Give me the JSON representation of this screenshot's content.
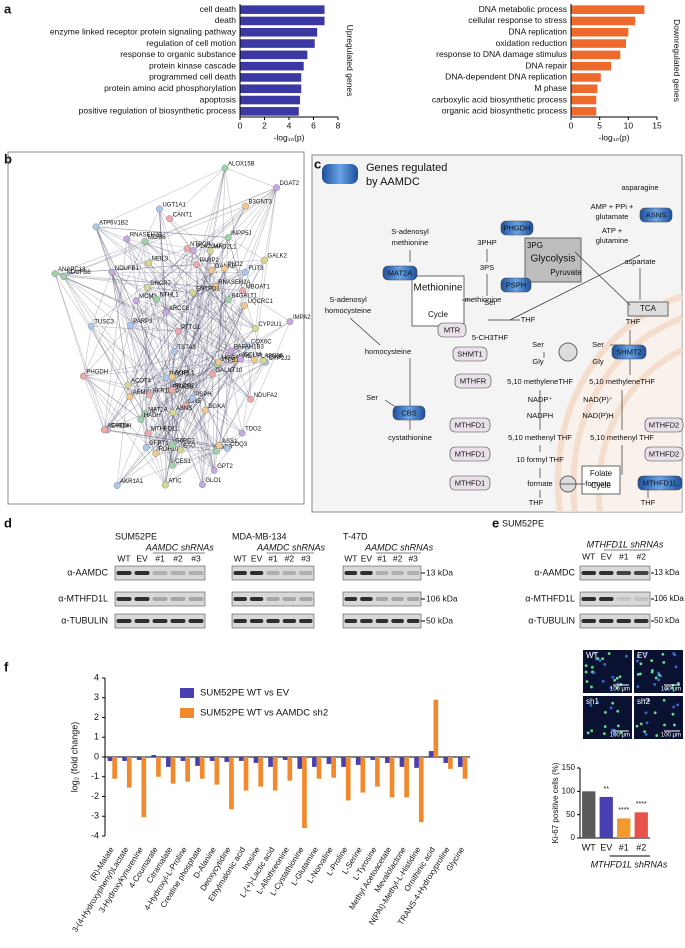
{
  "panel_labels": [
    "a",
    "b",
    "c",
    "d",
    "e",
    "f"
  ],
  "chart_data": [
    {
      "type": "hbar",
      "categories": [
        "cell death",
        "death",
        "enzyme linked receptor protein signaling pathway",
        "regulation of cell motion",
        "response to organic substance",
        "protein kinase cascade",
        "programmed cell death",
        "protein amino acid phosphorylation",
        "apoptosis",
        "positive regulation of biosynthetic process"
      ],
      "values": [
        6.9,
        6.9,
        6.3,
        6.1,
        5.5,
        5.2,
        5.0,
        5.0,
        4.9,
        4.8
      ],
      "color": "#3b37a3",
      "xlim": [
        0,
        8
      ],
      "xticks": [
        0,
        2,
        4,
        6,
        8
      ],
      "xlabel": "-log₁₀(p)",
      "ylabel": "Upregulated genes"
    },
    {
      "type": "hbar",
      "categories": [
        "DNA metabolic process",
        "cellular response to stress",
        "DNA replication",
        "oxidation reduction",
        "response to DNA damage stimulus",
        "DNA repair",
        "DNA-dependent DNA replication",
        "M phase",
        "carboxylic acid biosynthetic process",
        "organic acid biosynthetic process"
      ],
      "values": [
        12.8,
        11.2,
        10.0,
        9.6,
        8.6,
        7.0,
        5.2,
        4.6,
        4.4,
        4.4
      ],
      "color": "#ee6a2c",
      "xlim": [
        0,
        15
      ],
      "xticks": [
        0,
        5,
        10,
        15
      ],
      "xlabel": "-log₁₀(p)",
      "ylabel": "Downregulated genes"
    },
    {
      "type": "bar",
      "categories": [
        "WT",
        "EV",
        "#1",
        "#2"
      ],
      "values": [
        100,
        88,
        42,
        55
      ],
      "colors": [
        "#5a5a5a",
        "#4a3fb0",
        "#f39a2e",
        "#e9524a"
      ],
      "annotations": [
        null,
        "**",
        "****",
        "****"
      ],
      "ylim": [
        0,
        150
      ],
      "yticks": [
        0,
        50,
        100,
        150
      ],
      "ylabel": "Ki-67 positive cells (%)",
      "xlabel": "MTHFD1L shRNAs"
    },
    {
      "type": "grouped_bar",
      "categories": [
        "(R)-Malate",
        "3-(4-Hydroxyphenyl)Lactate",
        "3-Hydroxykynurenine",
        "4-Coumarate",
        "Citramalate",
        "4-Hydroxyl-L-Proline",
        "Creatine phosphate",
        "D-Alanine",
        "Deoxycytidine",
        "Ethylmalonic acid",
        "Inosine",
        "L-(+)-Lactic acid",
        "L-Allothreonine",
        "L-Cystathionine",
        "L-Glutamine",
        "L-Norvaline",
        "L-Proline",
        "L-Serine",
        "L-Tyrosine",
        "Methyl Acetoacetate",
        "Mevalolactone",
        "N(PAI)-Methyl-L-Histidine",
        "Ornithinic acid",
        "TRANS-4-Hydroxyproline",
        "Glycine"
      ],
      "series": [
        {
          "name": "SUM52PE WT vs EV",
          "color": "#4a3fb0",
          "values": [
            -0.2,
            -0.2,
            -0.15,
            0.1,
            -0.5,
            -0.2,
            -0.45,
            -0.2,
            -0.25,
            -0.2,
            -0.3,
            -0.5,
            -0.15,
            -0.6,
            -0.5,
            -0.35,
            -0.5,
            -0.4,
            -0.15,
            -0.3,
            -0.5,
            -0.55,
            0.3,
            -0.3,
            -0.5
          ]
        },
        {
          "name": "SUM52PE WT vs AAMDC sh2",
          "color": "#f08a2c",
          "values": [
            -1.1,
            -1.55,
            -3.05,
            -1.0,
            -1.35,
            -1.25,
            -1.1,
            -1.4,
            -2.65,
            -1.7,
            -1.5,
            -1.7,
            -1.2,
            -3.6,
            -1.1,
            -1.05,
            -2.2,
            -1.8,
            -1.5,
            -2.05,
            -2.05,
            -3.3,
            2.9,
            -0.6,
            -1.1
          ]
        }
      ],
      "ylim": [
        -4,
        4
      ],
      "yticks": [
        -4,
        -3,
        -2,
        -1,
        0,
        1,
        2,
        3,
        4
      ],
      "ylabel": "log₂ (fold change)"
    }
  ],
  "network": {
    "genes": [
      "ANAPC13",
      "RNASEH2B",
      "RNASEH2A",
      "TUSC3",
      "PTTG1",
      "MAD2L1",
      "MCM6",
      "MCM3",
      "GANAB",
      "PARP3",
      "PARP2",
      "NEIL3",
      "NTHL1",
      "XRCC6",
      "ORC1",
      "ATP6V1B2",
      "NTPCR",
      "PI4K2B",
      "INPP5J",
      "IMPA2",
      "DGKA",
      "UGT1A1",
      "MBOAT1",
      "CYP2U1",
      "ALOX15B",
      "PLA2G4F",
      "PLA2G16",
      "CYP2J2",
      "CANT1",
      "ENTPD1",
      "ATP5J2",
      "DGAT2",
      "PLD2",
      "COX6C",
      "NDUFA2",
      "GALK2",
      "B4GALT1",
      "PAFAH1B3",
      "B3GNT3",
      "FUT3",
      "GALNT10",
      "DHCR7",
      "NDUFB8",
      "NDUFB1",
      "UQCRC1",
      "TSTA3",
      "GNE",
      "ESD",
      "CES1",
      "GLO1",
      "HOGA1",
      "PYCR1",
      "PHGDH",
      "ASNS",
      "GSS",
      "GCLM",
      "SGPL1",
      "GFPT1",
      "MTHFD1L",
      "ATIC",
      "MAT2A",
      "SARDH",
      "RDH10",
      "COQ3",
      "ACADM",
      "ACOT4",
      "HADH",
      "TDO2",
      "AFMID",
      "AKR1A1",
      "AKR1B10",
      "PDXP",
      "G6PC3",
      "GPT2",
      "ASS1",
      "PSPH",
      "PLCG2"
    ]
  },
  "pathway": {
    "legend": [
      "Genes regulated",
      "by AAMDC"
    ],
    "enzymes": [
      {
        "label": "PHGDH",
        "regulated": true
      },
      {
        "label": "PSPH",
        "regulated": true
      },
      {
        "label": "MAT2A",
        "regulated": true
      },
      {
        "label": "ASNS",
        "regulated": true
      },
      {
        "label": "MTR",
        "regulated": false
      },
      {
        "label": "SHMT1",
        "regulated": false
      },
      {
        "label": "SHMT2",
        "regulated": true
      },
      {
        "label": "CBS",
        "regulated": true
      },
      {
        "label": "MTHFR",
        "regulated": false
      },
      {
        "label": "MTHFD1",
        "regulated": false
      },
      {
        "label": "MTHFD2",
        "regulated": false
      },
      {
        "label": "MTHFD1",
        "regulated": false
      },
      {
        "label": "MTHFD2",
        "regulated": false
      },
      {
        "label": "MTHFD1",
        "regulated": false
      },
      {
        "label": "MTHFD1L",
        "regulated": true
      }
    ],
    "metabolites": [
      "asparagine",
      "AMP + PPi +",
      "glutamate",
      "ATP +",
      "glutamine",
      "aspartate",
      "3PHP",
      "3PS",
      "Ser",
      "S-adenosyl",
      "methionine",
      "methionine",
      "S-adenosyl",
      "homocysteine",
      "homocysteine",
      "5-CH3THF",
      "THF",
      "THF",
      "Ser",
      "Gly",
      "Ser",
      "Gly",
      "Ser",
      "cystathionine",
      "5,10 methyleneTHF",
      "5,10 methyleneTHF",
      "NADP⁺",
      "NADPH",
      "NAD(P)⁺",
      "NAD(P)H",
      "5,10 methenyl THF",
      "5,10 methenyl THF",
      "10 formyl THF",
      "formate",
      "formate",
      "THF",
      "THF"
    ],
    "boxes": [
      "3PG",
      "Glycolysis",
      "Pyruvate",
      "Methionine",
      "Cycle",
      "TCA",
      "Folate",
      "Cycle"
    ]
  },
  "blots": {
    "d": {
      "groups": [
        {
          "cell_line": "SUM52PE",
          "shrna": "AAMDC shRNAs",
          "lanes": [
            "WT",
            "EV",
            "#1",
            "#2",
            "#3"
          ]
        },
        {
          "cell_line": "MDA-MB-134",
          "shrna": "AAMDC shRNAs",
          "lanes": [
            "WT",
            "EV",
            "#1",
            "#2",
            "#3"
          ]
        },
        {
          "cell_line": "T-47D",
          "shrna": "AAMDC shRNAs",
          "lanes": [
            "WT",
            "EV",
            "#1",
            "#2",
            "#3"
          ]
        }
      ],
      "antibodies": [
        "α-AAMDC",
        "α-MTHFD1L",
        "α-TUBULIN"
      ],
      "sizes": [
        "13 kDa",
        "106 kDa",
        "50 kDa"
      ]
    },
    "e": {
      "cell_line": "SUM52PE",
      "shrna": "MTHFD1L shRNAs",
      "lanes": [
        "WT",
        "EV",
        "#1",
        "#2"
      ],
      "antibodies": [
        "α-AAMDC",
        "α-MTHFD1L",
        "α-TUBULIN"
      ],
      "sizes": [
        "13 kDa",
        "106 kDa",
        "50 kDa"
      ]
    }
  },
  "micrographs": [
    {
      "label": "WT",
      "scale": "100 μm"
    },
    {
      "label": "EV",
      "scale": "100 μm"
    },
    {
      "label": "sh1",
      "scale": "100 μm"
    },
    {
      "label": "sh2",
      "scale": "100 μm"
    }
  ]
}
